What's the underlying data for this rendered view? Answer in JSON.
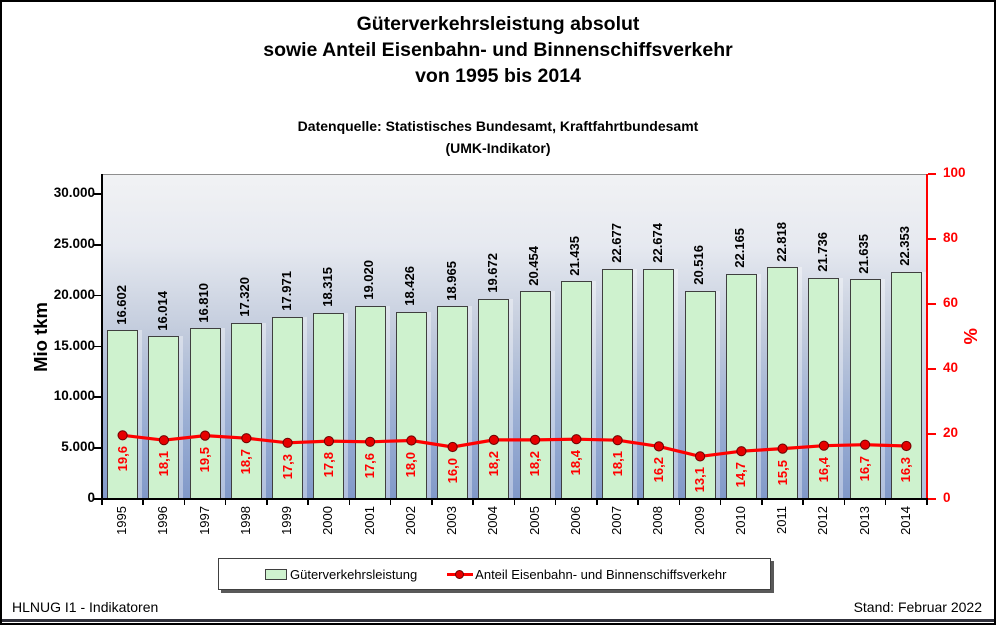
{
  "title": {
    "lines": [
      "Güterverkehrsleistung absolut",
      "sowie Anteil Eisenbahn- und Binnenschiffsverkehr",
      "von 1995 bis 2014"
    ]
  },
  "subtitle": {
    "lines": [
      "Datenquelle: Statistisches Bundesamt, Kraftfahrtbundesamt",
      "(UMK-Indikator)"
    ]
  },
  "footer": {
    "left": "HLNUG I1 - Indikatoren",
    "right": "Stand: Februar 2022"
  },
  "legend": {
    "bar_series_label": "Güterverkehrsleistung",
    "line_series_label": "Anteil Eisenbahn- und Binnenschiffsverkehr"
  },
  "colors": {
    "bar_fill": "#cef2ce",
    "bar_border": "#3f3f3f",
    "line": "#ff0000",
    "marker_fill": "#e60000",
    "marker_edge": "#6b0000",
    "plot_gradient_top": "#f1f2f4",
    "plot_gradient_bottom": "#8199c9",
    "footer_bar": "#30303a"
  },
  "chart_data": {
    "type": "bar",
    "combo": "bar+line",
    "categories": [
      "1995",
      "1996",
      "1997",
      "1998",
      "1999",
      "2000",
      "2001",
      "2002",
      "2003",
      "2004",
      "2005",
      "2006",
      "2007",
      "2008",
      "2009",
      "2010",
      "2011",
      "2012",
      "2013",
      "2014"
    ],
    "series": [
      {
        "name": "Güterverkehrsleistung",
        "type": "bar",
        "axis": "left",
        "values": [
          16602,
          16014,
          16810,
          17320,
          17971,
          18315,
          19020,
          18426,
          18965,
          19672,
          20454,
          21435,
          22677,
          22674,
          20516,
          22165,
          22818,
          21736,
          21635,
          22353
        ],
        "value_labels": [
          "16.602",
          "16.014",
          "16.810",
          "17.320",
          "17.971",
          "18.315",
          "19.020",
          "18.426",
          "18.965",
          "19.672",
          "20.454",
          "21.435",
          "22.677",
          "22.674",
          "20.516",
          "22.165",
          "22.818",
          "21.736",
          "21.635",
          "22.353"
        ]
      },
      {
        "name": "Anteil Eisenbahn- und Binnenschiffsverkehr",
        "type": "line",
        "axis": "right",
        "values": [
          19.6,
          18.1,
          19.5,
          18.7,
          17.3,
          17.8,
          17.6,
          18.0,
          16.0,
          18.2,
          18.2,
          18.4,
          18.1,
          16.2,
          13.1,
          14.7,
          15.5,
          16.4,
          16.7,
          16.3
        ],
        "value_labels": [
          "19,6",
          "18,1",
          "19,5",
          "18,7",
          "17,3",
          "17,8",
          "17,6",
          "18,0",
          "16,0",
          "18,2",
          "18,2",
          "18,4",
          "18,1",
          "16,2",
          "13,1",
          "14,7",
          "15,5",
          "16,4",
          "16,7",
          "16,3"
        ]
      }
    ],
    "left_axis": {
      "title": "Mio tkm",
      "min": 0,
      "max": 32000,
      "ticks": [
        0,
        5000,
        10000,
        15000,
        20000,
        25000,
        30000
      ],
      "tick_labels": [
        "0",
        "5.000",
        "10.000",
        "15.000",
        "20.000",
        "25.000",
        "30.000"
      ]
    },
    "right_axis": {
      "title": "%",
      "min": 0,
      "max": 100,
      "ticks": [
        0,
        20,
        40,
        60,
        80,
        100
      ],
      "tick_labels": [
        "0",
        "20",
        "40",
        "60",
        "80",
        "100"
      ]
    },
    "legend_position": "bottom",
    "grid": false
  }
}
